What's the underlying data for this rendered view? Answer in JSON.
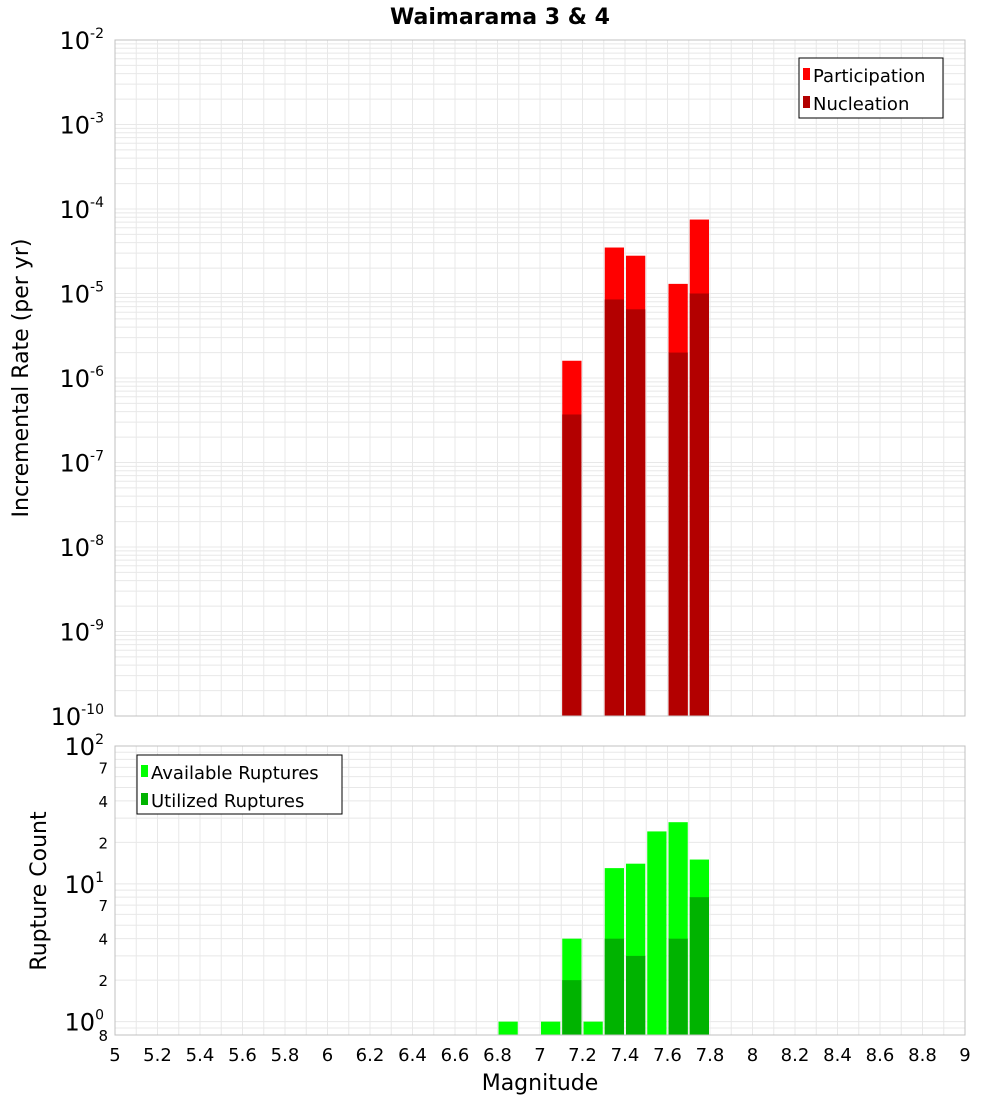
{
  "colors": {
    "participation": "#ff0000",
    "nucleation": "#b30000",
    "available": "#00ff00",
    "utilized": "#00b300",
    "grid": "#e8e8e8",
    "frame": "#c0c0c0"
  },
  "chart_data": [
    {
      "type": "bar",
      "title": "Waimarama 3 & 4",
      "xlabel": "Magnitude",
      "ylabel": "Incremental Rate (per yr)",
      "yscale": "log",
      "xlim": [
        5,
        9
      ],
      "ylim": [
        1e-10,
        0.01
      ],
      "bin_width": 0.1,
      "x_ticks": [
        "5",
        "5.2",
        "5.4",
        "5.6",
        "5.8",
        "6",
        "6.2",
        "6.4",
        "6.6",
        "6.8",
        "7",
        "7.2",
        "7.4",
        "7.6",
        "7.8",
        "8",
        "8.2",
        "8.4",
        "8.6",
        "8.8",
        "9"
      ],
      "y_ticks": [
        {
          "base": "10",
          "exp": "-10",
          "value": 1e-10
        },
        {
          "base": "10",
          "exp": "-9",
          "value": 1e-09
        },
        {
          "base": "10",
          "exp": "-8",
          "value": 1e-08
        },
        {
          "base": "10",
          "exp": "-7",
          "value": 1e-07
        },
        {
          "base": "10",
          "exp": "-6",
          "value": 1e-06
        },
        {
          "base": "10",
          "exp": "-5",
          "value": 1e-05
        },
        {
          "base": "10",
          "exp": "-4",
          "value": 0.0001
        },
        {
          "base": "10",
          "exp": "-3",
          "value": 0.001
        },
        {
          "base": "10",
          "exp": "-2",
          "value": 0.01
        }
      ],
      "legend": {
        "position": "top-right",
        "entries": [
          "Participation",
          "Nucleation"
        ]
      },
      "series": [
        {
          "name": "Participation",
          "x": [
            7.15,
            7.35,
            7.45,
            7.65,
            7.75
          ],
          "values": [
            1.6e-06,
            3.5e-05,
            2.8e-05,
            1.3e-05,
            7.5e-05
          ]
        },
        {
          "name": "Nucleation",
          "x": [
            7.15,
            7.35,
            7.45,
            7.65,
            7.75
          ],
          "values": [
            3.7e-07,
            8.5e-06,
            6.5e-06,
            2e-06,
            1e-05
          ]
        }
      ]
    },
    {
      "type": "bar",
      "xlabel": "Magnitude",
      "ylabel": "Rupture Count",
      "yscale": "log",
      "xlim": [
        5,
        9
      ],
      "ylim": [
        0.8,
        100
      ],
      "bin_width": 0.1,
      "y_ticks": [
        {
          "base": "10",
          "exp": "0",
          "value": 1
        },
        {
          "base": "10",
          "exp": "1",
          "value": 10
        },
        {
          "base": "10",
          "exp": "2",
          "value": 100
        }
      ],
      "y_minor_labels": [
        {
          "label": "8",
          "value": 0.8
        },
        {
          "label": "2",
          "value": 2
        },
        {
          "label": "4",
          "value": 4
        },
        {
          "label": "7",
          "value": 7
        },
        {
          "label": "2",
          "value": 20
        },
        {
          "label": "4",
          "value": 40
        },
        {
          "label": "7",
          "value": 70
        }
      ],
      "legend": {
        "position": "top-left",
        "entries": [
          "Available Ruptures",
          "Utilized Ruptures"
        ]
      },
      "series": [
        {
          "name": "Available Ruptures",
          "x": [
            6.85,
            7.05,
            7.15,
            7.25,
            7.35,
            7.45,
            7.55,
            7.65,
            7.75
          ],
          "values": [
            1,
            1,
            4,
            1,
            13,
            14,
            24,
            28,
            15
          ]
        },
        {
          "name": "Utilized Ruptures",
          "x": [
            7.15,
            7.35,
            7.45,
            7.65,
            7.75
          ],
          "values": [
            2,
            4,
            3,
            4,
            8
          ]
        }
      ]
    }
  ]
}
